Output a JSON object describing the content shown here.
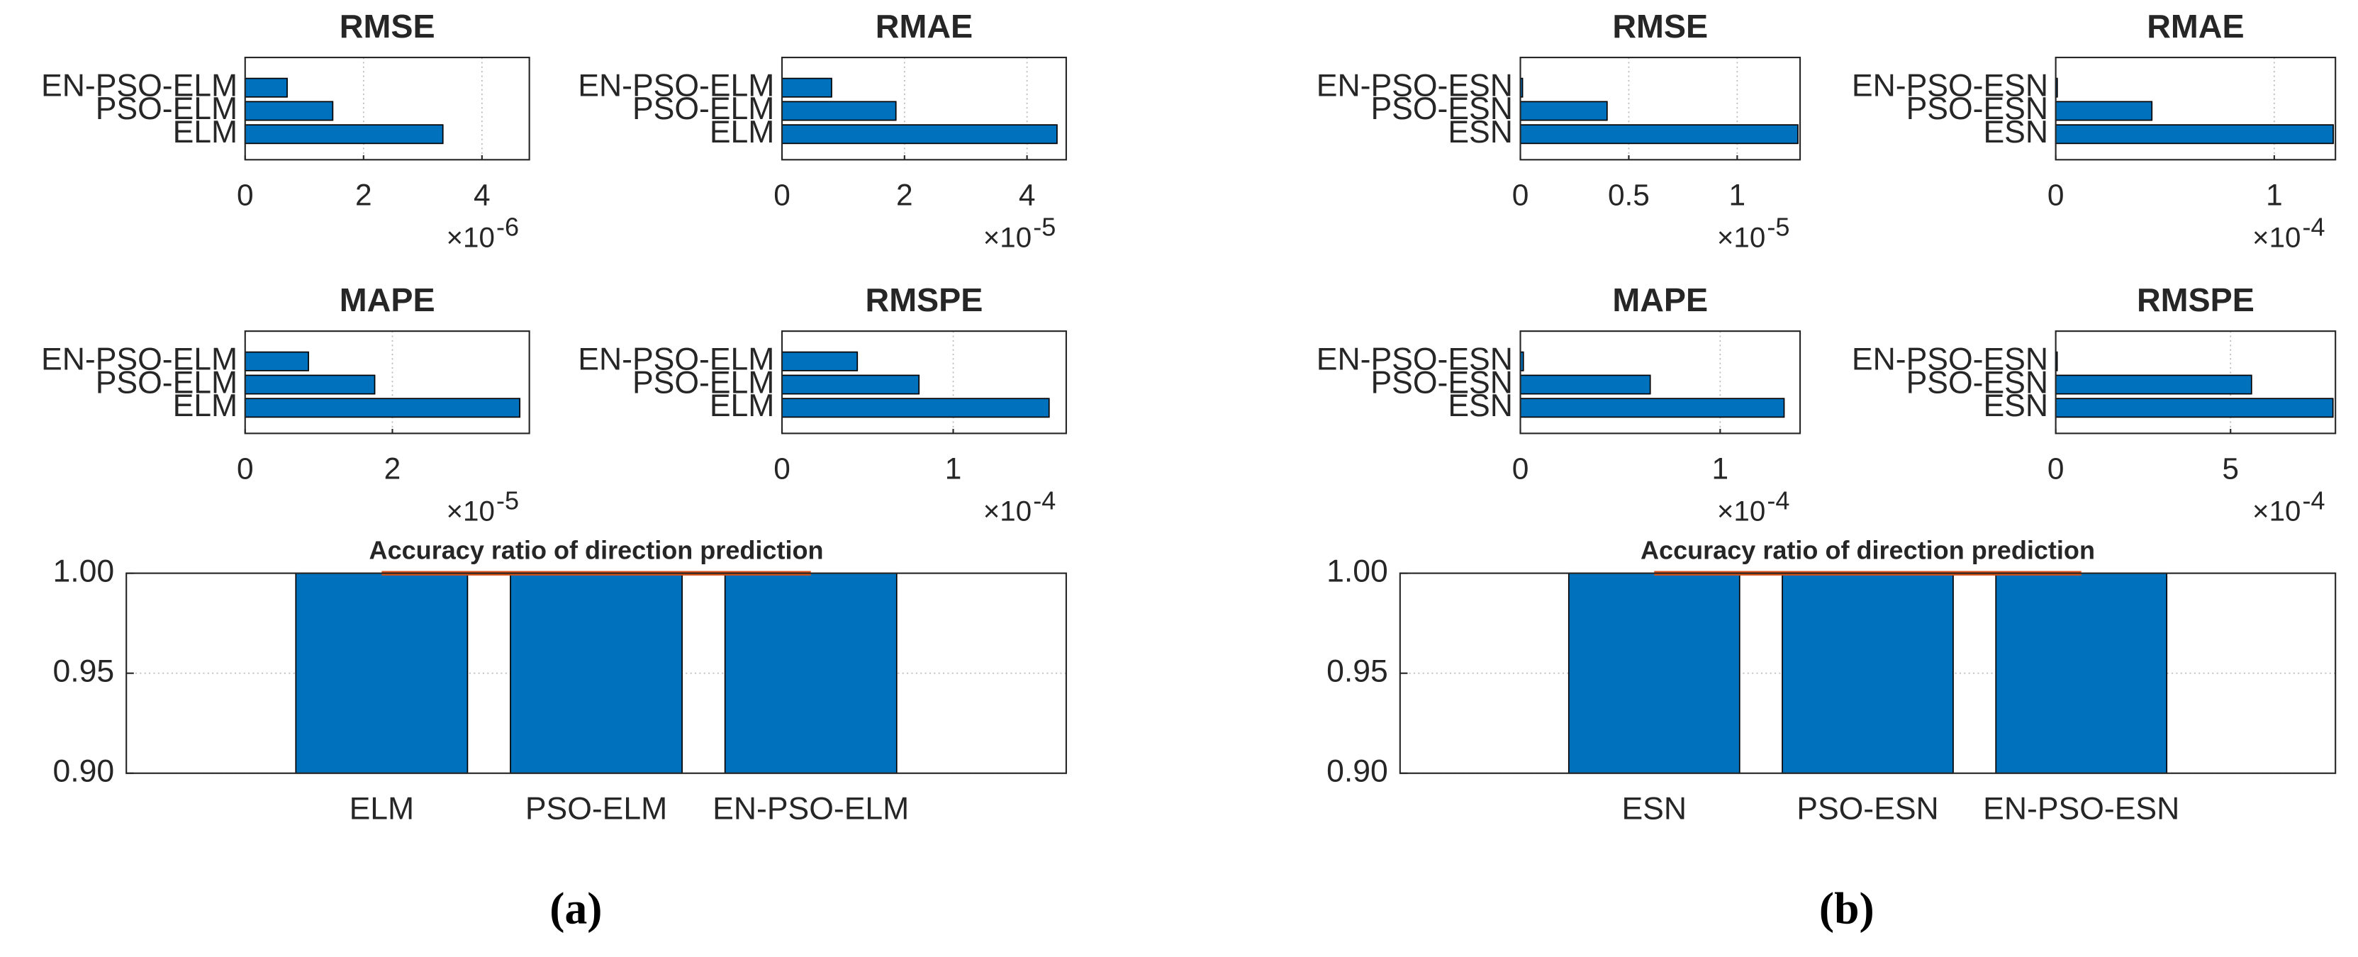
{
  "captions": [
    "(a)",
    "(b)"
  ],
  "chart_data": [
    {
      "type": "barh",
      "title": "RMSE",
      "categories": [
        "ELM",
        "PSO-ELM",
        "EN-PSO-ELM"
      ],
      "values": [
        3.34,
        1.48,
        0.71
      ],
      "color": "#0072bd",
      "xlim": [
        0,
        4.8
      ],
      "xticks": [
        0,
        2,
        4
      ],
      "x_multiplier": "×10",
      "x_exponent": "-6",
      "grid": true
    },
    {
      "type": "barh",
      "title": "RMAE",
      "categories": [
        "ELM",
        "PSO-ELM",
        "EN-PSO-ELM"
      ],
      "values": [
        4.49,
        1.86,
        0.81
      ],
      "color": "#0072bd",
      "xlim": [
        0,
        4.64
      ],
      "xticks": [
        0,
        2,
        4
      ],
      "x_multiplier": "×10",
      "x_exponent": "-5",
      "grid": true
    },
    {
      "type": "barh",
      "title": "MAPE",
      "categories": [
        "ELM",
        "PSO-ELM",
        "EN-PSO-ELM"
      ],
      "values": [
        3.73,
        1.76,
        0.86
      ],
      "color": "#0072bd",
      "xlim": [
        0,
        3.86
      ],
      "xticks": [
        0,
        2
      ],
      "x_multiplier": "×10",
      "x_exponent": "-5",
      "grid": true
    },
    {
      "type": "barh",
      "title": "RMSPE",
      "categories": [
        "ELM",
        "PSO-ELM",
        "EN-PSO-ELM"
      ],
      "values": [
        1.56,
        0.8,
        0.44
      ],
      "color": "#0072bd",
      "xlim": [
        0,
        1.66
      ],
      "xticks": [
        0,
        1
      ],
      "x_multiplier": "×10",
      "x_exponent": "-4",
      "grid": true
    },
    {
      "type": "bar",
      "title": "Accuracy ratio of direction prediction",
      "categories": [
        "ELM",
        "PSO-ELM",
        "EN-PSO-ELM"
      ],
      "series": [
        {
          "type": "bar",
          "color": "#0072bd",
          "values": [
            1,
            1,
            1
          ]
        },
        {
          "type": "line",
          "color": "#d95319",
          "values": [
            1,
            1,
            1
          ]
        }
      ],
      "ylim": [
        0.9,
        1
      ],
      "yticks": [
        {
          "value": 0.9,
          "label": "0.90"
        },
        {
          "value": 0.95,
          "label": "0.95"
        },
        {
          "value": 1,
          "label": "1.00"
        }
      ],
      "grid": true
    },
    {
      "type": "barh",
      "title": "RMSE",
      "categories": [
        "ESN",
        "PSO-ESN",
        "EN-PSO-ESN"
      ],
      "values": [
        1.28,
        0.4,
        0.01
      ],
      "color": "#0072bd",
      "xlim": [
        0,
        1.29
      ],
      "xticks": [
        0,
        0.5,
        1
      ],
      "x_multiplier": "×10",
      "x_exponent": "-5",
      "grid": true
    },
    {
      "type": "barh",
      "title": "RMAE",
      "categories": [
        "ESN",
        "PSO-ESN",
        "EN-PSO-ESN"
      ],
      "values": [
        1.27,
        0.44,
        0.007
      ],
      "color": "#0072bd",
      "xlim": [
        0,
        1.28
      ],
      "xticks": [
        0,
        1
      ],
      "x_multiplier": "×10",
      "x_exponent": "-4",
      "grid": true
    },
    {
      "type": "barh",
      "title": "MAPE",
      "categories": [
        "ESN",
        "PSO-ESN",
        "EN-PSO-ESN"
      ],
      "values": [
        1.32,
        0.65,
        0.015
      ],
      "color": "#0072bd",
      "xlim": [
        0,
        1.4
      ],
      "xticks": [
        0,
        1
      ],
      "x_multiplier": "×10",
      "x_exponent": "-4",
      "grid": true
    },
    {
      "type": "barh",
      "title": "RMSPE",
      "categories": [
        "ESN",
        "PSO-ESN",
        "EN-PSO-ESN"
      ],
      "values": [
        7.93,
        5.6,
        0.04
      ],
      "color": "#0072bd",
      "xlim": [
        0,
        8
      ],
      "xticks": [
        0,
        5
      ],
      "x_multiplier": "×10",
      "x_exponent": "-4",
      "grid": true
    },
    {
      "type": "bar",
      "title": "Accuracy ratio of direction prediction",
      "categories": [
        "ESN",
        "PSO-ESN",
        "EN-PSO-ESN"
      ],
      "series": [
        {
          "type": "bar",
          "color": "#0072bd",
          "values": [
            1,
            1,
            1
          ]
        },
        {
          "type": "line",
          "color": "#d95319",
          "values": [
            1,
            1,
            1
          ]
        }
      ],
      "ylim": [
        0.9,
        1
      ],
      "yticks": [
        {
          "value": 0.9,
          "label": "0.90"
        },
        {
          "value": 0.95,
          "label": "0.95"
        },
        {
          "value": 1,
          "label": "1.00"
        }
      ],
      "grid": true
    }
  ]
}
